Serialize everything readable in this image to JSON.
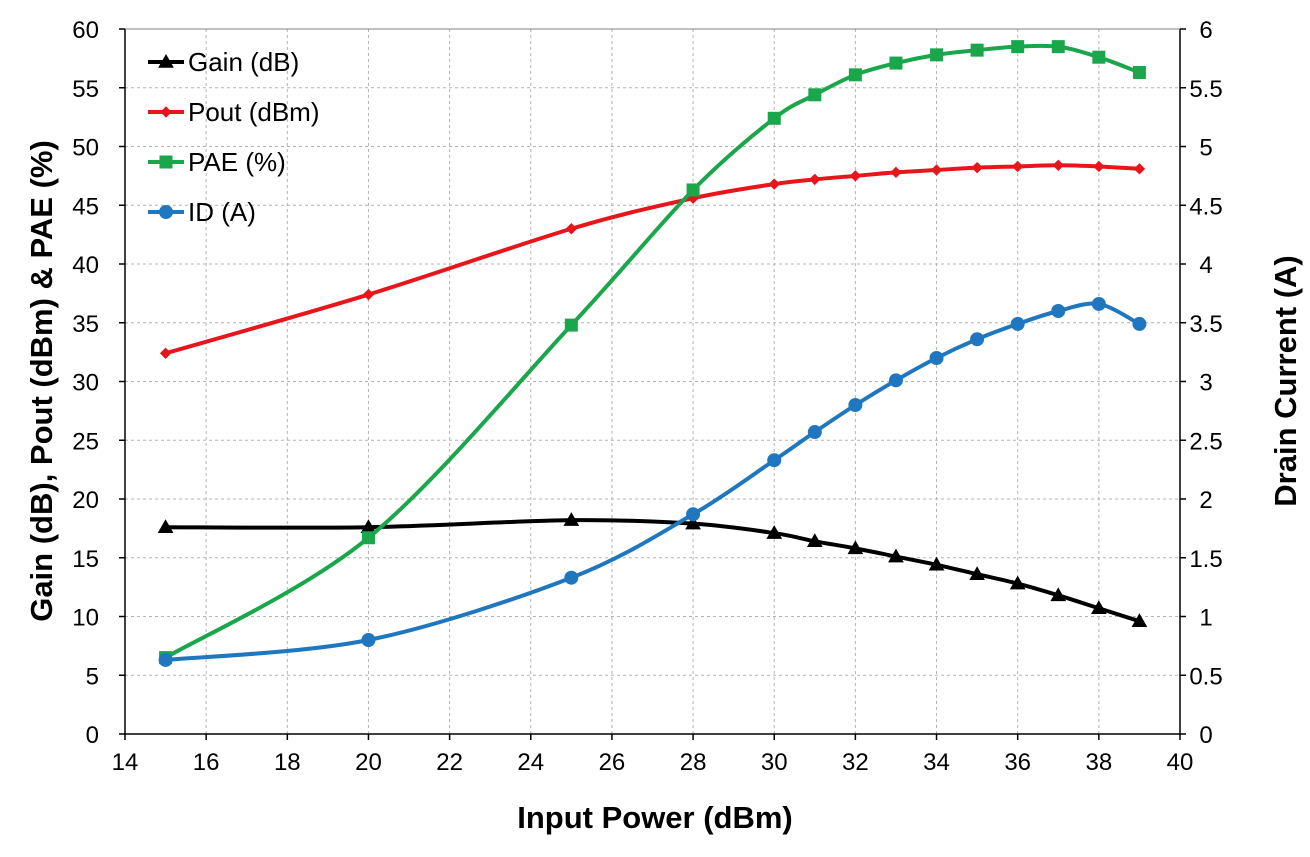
{
  "chart_data": {
    "type": "line",
    "title": "",
    "xlabel": "Input Power (dBm)",
    "ylabel": "Gain (dB), Pout (dBm) & PAE (%)",
    "y2label": "Drain Current (A)",
    "xlim": [
      14,
      40
    ],
    "ylim": [
      0,
      60
    ],
    "y2lim": [
      0,
      6
    ],
    "x_ticks": [
      "14",
      "16",
      "18",
      "20",
      "22",
      "24",
      "26",
      "28",
      "30",
      "32",
      "34",
      "36",
      "38",
      "40"
    ],
    "y_ticks": [
      "0",
      "5",
      "10",
      "15",
      "20",
      "25",
      "30",
      "35",
      "40",
      "45",
      "50",
      "55",
      "60"
    ],
    "y2_ticks": [
      "0",
      "0.5",
      "1",
      "1.5",
      "2",
      "2.5",
      "3",
      "3.5",
      "4",
      "4.5",
      "5",
      "5.5",
      "6"
    ],
    "grid": true,
    "legend_position": "top-left",
    "x": [
      15,
      20,
      25,
      28,
      30,
      31,
      32,
      33,
      34,
      35,
      36,
      37,
      38,
      39
    ],
    "series": [
      {
        "name": "Gain (dB)",
        "axis": "left",
        "color": "#000000",
        "marker": "triangle",
        "values": [
          17.6,
          17.6,
          18.2,
          17.9,
          17.1,
          16.4,
          15.8,
          15.1,
          14.4,
          13.6,
          12.8,
          11.8,
          10.7,
          9.6
        ]
      },
      {
        "name": "Pout (dBm)",
        "axis": "left",
        "color": "#e8161b",
        "marker": "diamond",
        "values": [
          32.4,
          37.4,
          43.0,
          45.6,
          46.8,
          47.2,
          47.5,
          47.8,
          48.0,
          48.2,
          48.3,
          48.4,
          48.3,
          48.1
        ]
      },
      {
        "name": "PAE (%)",
        "axis": "left",
        "color": "#1aa64a",
        "marker": "square",
        "values": [
          6.5,
          16.7,
          34.8,
          46.3,
          52.4,
          54.4,
          56.1,
          57.1,
          57.8,
          58.2,
          58.5,
          58.5,
          57.6,
          56.3
        ]
      },
      {
        "name": "ID (A)",
        "axis": "right",
        "color": "#1f77bf",
        "marker": "circle",
        "values": [
          0.63,
          0.8,
          1.33,
          1.87,
          2.33,
          2.57,
          2.8,
          3.01,
          3.2,
          3.36,
          3.49,
          3.6,
          3.66,
          3.49
        ]
      }
    ]
  }
}
